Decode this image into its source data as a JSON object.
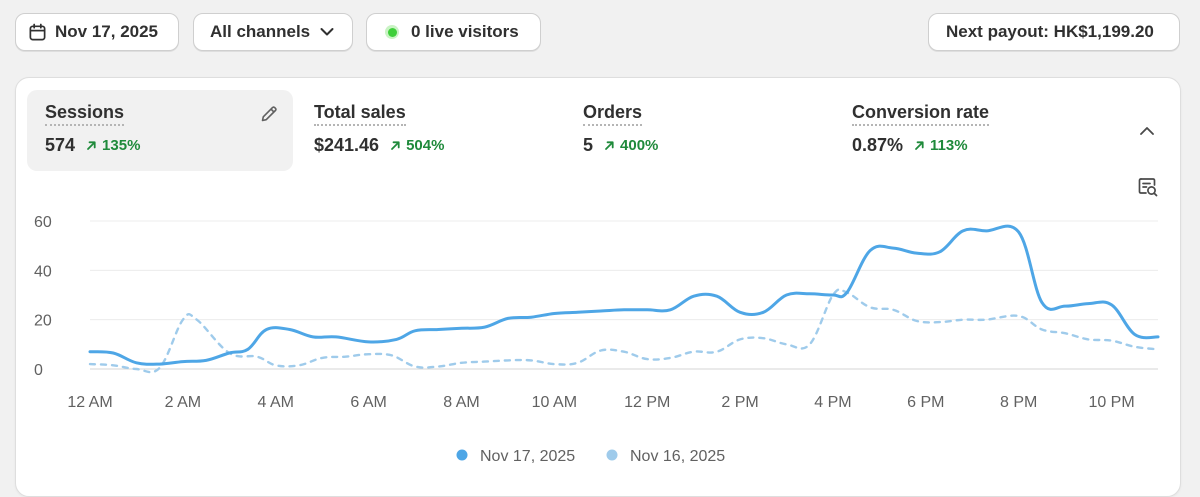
{
  "toolbar": {
    "date_label": "Nov 17, 2025",
    "channels_label": "All channels",
    "visitors_label": "0 live visitors",
    "payout_label": "Next payout: HK$1,199.20"
  },
  "metrics": [
    {
      "label": "Sessions",
      "value": "574",
      "change": "135%"
    },
    {
      "label": "Total sales",
      "value": "$241.46",
      "change": "504%"
    },
    {
      "label": "Orders",
      "value": "5",
      "change": "400%"
    },
    {
      "label": "Conversion rate",
      "value": "0.87%",
      "change": "113%"
    }
  ],
  "colors": {
    "current": "#4ea6e6",
    "previous": "#9fcbeb",
    "positive": "#1f8a3b"
  },
  "chart_data": {
    "type": "line",
    "title": "Sessions",
    "x_labels": [
      "12 AM",
      "2 AM",
      "4 AM",
      "6 AM",
      "8 AM",
      "10 AM",
      "12 PM",
      "2 PM",
      "4 PM",
      "6 PM",
      "8 PM",
      "10 PM"
    ],
    "y_ticks": [
      0,
      20,
      40,
      60
    ],
    "ylim": [
      0,
      60
    ],
    "x_unit": "hour",
    "xlim": [
      0,
      23
    ],
    "series": [
      {
        "name": "Nov 17, 2025",
        "style": "solid",
        "points": [
          [
            0,
            7
          ],
          [
            0.5,
            6.5
          ],
          [
            1,
            2.5
          ],
          [
            1.5,
            2
          ],
          [
            2,
            3
          ],
          [
            2.5,
            3.5
          ],
          [
            3,
            6.5
          ],
          [
            3.4,
            8
          ],
          [
            3.8,
            16
          ],
          [
            4.3,
            16
          ],
          [
            4.8,
            13
          ],
          [
            5.3,
            13
          ],
          [
            6,
            11
          ],
          [
            6.6,
            12
          ],
          [
            7,
            15.5
          ],
          [
            7.5,
            16
          ],
          [
            8,
            16.5
          ],
          [
            8.5,
            17
          ],
          [
            9,
            20.5
          ],
          [
            9.5,
            21
          ],
          [
            10,
            22.5
          ],
          [
            10.5,
            23
          ],
          [
            11,
            23.5
          ],
          [
            11.5,
            24
          ],
          [
            12,
            24
          ],
          [
            12.5,
            24
          ],
          [
            13,
            29.5
          ],
          [
            13.5,
            29.5
          ],
          [
            14,
            23
          ],
          [
            14.5,
            23
          ],
          [
            15,
            30
          ],
          [
            15.5,
            30.5
          ],
          [
            16,
            30
          ],
          [
            16.3,
            31
          ],
          [
            16.8,
            48
          ],
          [
            17.3,
            49
          ],
          [
            17.8,
            47
          ],
          [
            18.3,
            47.5
          ],
          [
            18.8,
            56
          ],
          [
            19.3,
            56
          ],
          [
            20,
            55.5
          ],
          [
            20.5,
            27
          ],
          [
            21,
            25.5
          ],
          [
            21.5,
            26.5
          ],
          [
            22,
            26
          ],
          [
            22.5,
            14
          ],
          [
            23,
            13
          ]
        ]
      },
      {
        "name": "Nov 16, 2025",
        "style": "dashed",
        "points": [
          [
            0,
            2
          ],
          [
            0.5,
            1.5
          ],
          [
            1,
            0
          ],
          [
            1.5,
            0.5
          ],
          [
            2,
            20
          ],
          [
            2.3,
            20
          ],
          [
            3,
            6.5
          ],
          [
            3.6,
            5
          ],
          [
            4,
            1.5
          ],
          [
            4.5,
            1.5
          ],
          [
            5,
            4.5
          ],
          [
            5.5,
            5
          ],
          [
            6,
            6
          ],
          [
            6.5,
            5.5
          ],
          [
            7,
            1
          ],
          [
            7.5,
            1
          ],
          [
            8,
            2.5
          ],
          [
            8.5,
            3
          ],
          [
            9,
            3.5
          ],
          [
            9.5,
            3.5
          ],
          [
            10,
            2
          ],
          [
            10.5,
            2.5
          ],
          [
            11,
            7.5
          ],
          [
            11.5,
            7
          ],
          [
            12,
            4
          ],
          [
            12.5,
            4.5
          ],
          [
            13,
            7
          ],
          [
            13.5,
            7
          ],
          [
            14,
            12
          ],
          [
            14.5,
            12.5
          ],
          [
            15,
            10
          ],
          [
            15.5,
            10
          ],
          [
            16,
            30
          ],
          [
            16.3,
            31
          ],
          [
            16.8,
            25
          ],
          [
            17.3,
            24
          ],
          [
            17.8,
            19.5
          ],
          [
            18.3,
            19
          ],
          [
            18.8,
            20
          ],
          [
            19.3,
            20
          ],
          [
            20,
            21.5
          ],
          [
            20.5,
            16
          ],
          [
            21,
            14.5
          ],
          [
            21.5,
            12
          ],
          [
            22,
            11.5
          ],
          [
            22.5,
            9
          ],
          [
            23,
            8
          ]
        ]
      }
    ],
    "legend": [
      {
        "label": "Nov 17, 2025"
      },
      {
        "label": "Nov 16, 2025"
      }
    ]
  }
}
